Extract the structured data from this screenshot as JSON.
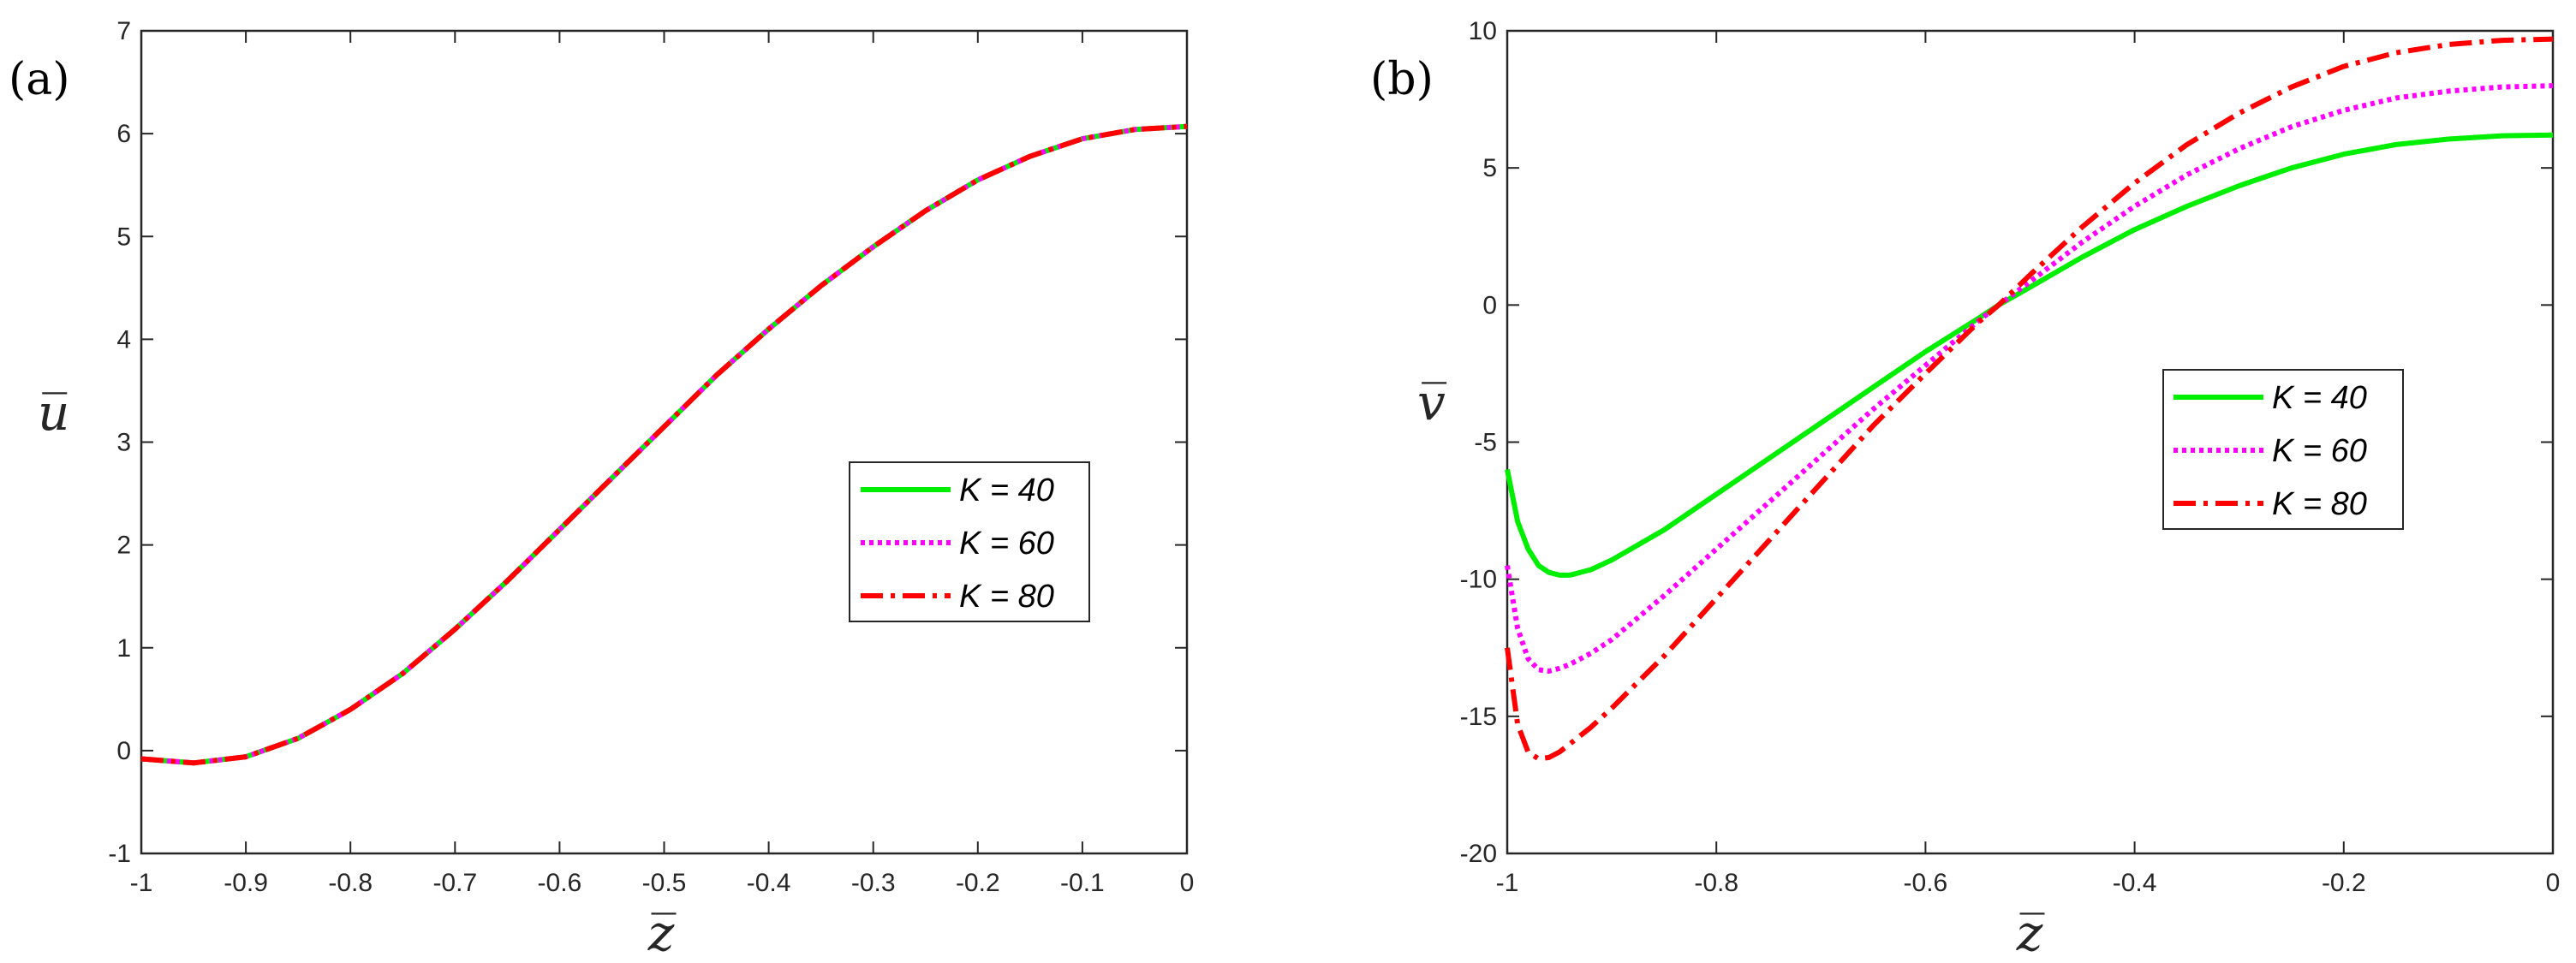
{
  "chart_data": [
    {
      "type": "line",
      "panel_label": "(a)",
      "xlabel": "z̅",
      "ylabel": "u̅",
      "xlim": [
        -1,
        0
      ],
      "ylim": [
        -1,
        7
      ],
      "xticks": [
        -1,
        -0.9,
        -0.8,
        -0.7,
        -0.6,
        -0.5,
        -0.4,
        -0.3,
        -0.2,
        -0.1,
        0
      ],
      "xtick_labels": [
        "-1",
        "-0.9",
        "-0.8",
        "-0.7",
        "-0.6",
        "-0.5",
        "-0.4",
        "-0.3",
        "-0.2",
        "-0.1",
        "0"
      ],
      "yticks": [
        -1,
        0,
        1,
        2,
        3,
        4,
        5,
        6,
        7
      ],
      "ytick_labels": [
        "-1",
        "0",
        "1",
        "2",
        "3",
        "4",
        "5",
        "6",
        "7"
      ],
      "legend_position": "center-right",
      "series": [
        {
          "name": "K = 40",
          "color": "#00ee00",
          "dash": "solid",
          "x": [
            -1,
            -0.95,
            -0.9,
            -0.85,
            -0.8,
            -0.75,
            -0.7,
            -0.65,
            -0.6,
            -0.55,
            -0.5,
            -0.45,
            -0.4,
            -0.35,
            -0.3,
            -0.25,
            -0.2,
            -0.15,
            -0.1,
            -0.05,
            0
          ],
          "y": [
            -0.08,
            -0.12,
            -0.06,
            0.12,
            0.4,
            0.75,
            1.18,
            1.65,
            2.15,
            2.65,
            3.15,
            3.65,
            4.1,
            4.52,
            4.9,
            5.25,
            5.55,
            5.78,
            5.95,
            6.04,
            6.07
          ]
        },
        {
          "name": "K = 60",
          "color": "#ff00ff",
          "dash": "dotted",
          "x": [
            -1,
            -0.95,
            -0.9,
            -0.85,
            -0.8,
            -0.75,
            -0.7,
            -0.65,
            -0.6,
            -0.55,
            -0.5,
            -0.45,
            -0.4,
            -0.35,
            -0.3,
            -0.25,
            -0.2,
            -0.15,
            -0.1,
            -0.05,
            0
          ],
          "y": [
            -0.08,
            -0.12,
            -0.06,
            0.12,
            0.4,
            0.75,
            1.18,
            1.65,
            2.15,
            2.65,
            3.15,
            3.65,
            4.1,
            4.52,
            4.9,
            5.25,
            5.55,
            5.78,
            5.95,
            6.04,
            6.07
          ]
        },
        {
          "name": "K = 80",
          "color": "#ff0000",
          "dash": "dashdot",
          "x": [
            -1,
            -0.95,
            -0.9,
            -0.85,
            -0.8,
            -0.75,
            -0.7,
            -0.65,
            -0.6,
            -0.55,
            -0.5,
            -0.45,
            -0.4,
            -0.35,
            -0.3,
            -0.25,
            -0.2,
            -0.15,
            -0.1,
            -0.05,
            0
          ],
          "y": [
            -0.08,
            -0.12,
            -0.06,
            0.12,
            0.4,
            0.75,
            1.18,
            1.65,
            2.15,
            2.65,
            3.15,
            3.65,
            4.1,
            4.52,
            4.9,
            5.25,
            5.55,
            5.78,
            5.95,
            6.04,
            6.07
          ]
        }
      ]
    },
    {
      "type": "line",
      "panel_label": "(b)",
      "xlabel": "z̅",
      "ylabel": "v̅",
      "xlim": [
        -1,
        0
      ],
      "ylim": [
        -20,
        10
      ],
      "xticks": [
        -1,
        -0.8,
        -0.6,
        -0.4,
        -0.2,
        0
      ],
      "xtick_labels": [
        "-1",
        "-0.8",
        "-0.6",
        "-0.4",
        "-0.2",
        "0"
      ],
      "yticks": [
        -20,
        -15,
        -10,
        -5,
        0,
        5,
        10
      ],
      "ytick_labels": [
        "-20",
        "-15",
        "-10",
        "-5",
        "0",
        "5",
        "10"
      ],
      "legend_position": "center-right",
      "series": [
        {
          "name": "K = 40",
          "color": "#00ee00",
          "dash": "solid",
          "x": [
            -1,
            -0.99,
            -0.98,
            -0.97,
            -0.96,
            -0.95,
            -0.94,
            -0.92,
            -0.9,
            -0.85,
            -0.8,
            -0.75,
            -0.7,
            -0.65,
            -0.6,
            -0.55,
            -0.53,
            -0.5,
            -0.45,
            -0.4,
            -0.35,
            -0.3,
            -0.25,
            -0.2,
            -0.15,
            -0.1,
            -0.05,
            0
          ],
          "y": [
            -6.0,
            -7.9,
            -8.9,
            -9.5,
            -9.75,
            -9.85,
            -9.85,
            -9.65,
            -9.3,
            -8.2,
            -6.9,
            -5.6,
            -4.3,
            -3.0,
            -1.7,
            -0.5,
            0.0,
            0.65,
            1.75,
            2.75,
            3.6,
            4.35,
            5.0,
            5.5,
            5.85,
            6.05,
            6.17,
            6.2
          ]
        },
        {
          "name": "K = 60",
          "color": "#ff00ff",
          "dash": "dotted",
          "x": [
            -1,
            -0.99,
            -0.98,
            -0.97,
            -0.96,
            -0.95,
            -0.94,
            -0.92,
            -0.9,
            -0.85,
            -0.8,
            -0.75,
            -0.7,
            -0.65,
            -0.6,
            -0.55,
            -0.53,
            -0.5,
            -0.45,
            -0.4,
            -0.35,
            -0.3,
            -0.25,
            -0.2,
            -0.15,
            -0.1,
            -0.05,
            0
          ],
          "y": [
            -9.5,
            -11.8,
            -12.9,
            -13.3,
            -13.35,
            -13.25,
            -13.1,
            -12.7,
            -12.2,
            -10.6,
            -8.9,
            -7.2,
            -5.5,
            -3.8,
            -2.2,
            -0.6,
            0.0,
            0.85,
            2.3,
            3.6,
            4.75,
            5.7,
            6.5,
            7.1,
            7.55,
            7.8,
            7.95,
            8.0
          ]
        },
        {
          "name": "K = 80",
          "color": "#ff0000",
          "dash": "dashdot",
          "x": [
            -1,
            -0.99,
            -0.98,
            -0.97,
            -0.96,
            -0.95,
            -0.94,
            -0.92,
            -0.9,
            -0.85,
            -0.8,
            -0.75,
            -0.7,
            -0.65,
            -0.6,
            -0.55,
            -0.53,
            -0.5,
            -0.45,
            -0.4,
            -0.35,
            -0.3,
            -0.25,
            -0.2,
            -0.15,
            -0.1,
            -0.05,
            0
          ],
          "y": [
            -12.5,
            -15.3,
            -16.3,
            -16.55,
            -16.5,
            -16.3,
            -16.0,
            -15.4,
            -14.7,
            -12.8,
            -10.7,
            -8.6,
            -6.5,
            -4.4,
            -2.5,
            -0.65,
            0.0,
            1.1,
            2.85,
            4.45,
            5.85,
            7.0,
            7.95,
            8.7,
            9.2,
            9.5,
            9.65,
            9.7
          ]
        }
      ]
    }
  ]
}
